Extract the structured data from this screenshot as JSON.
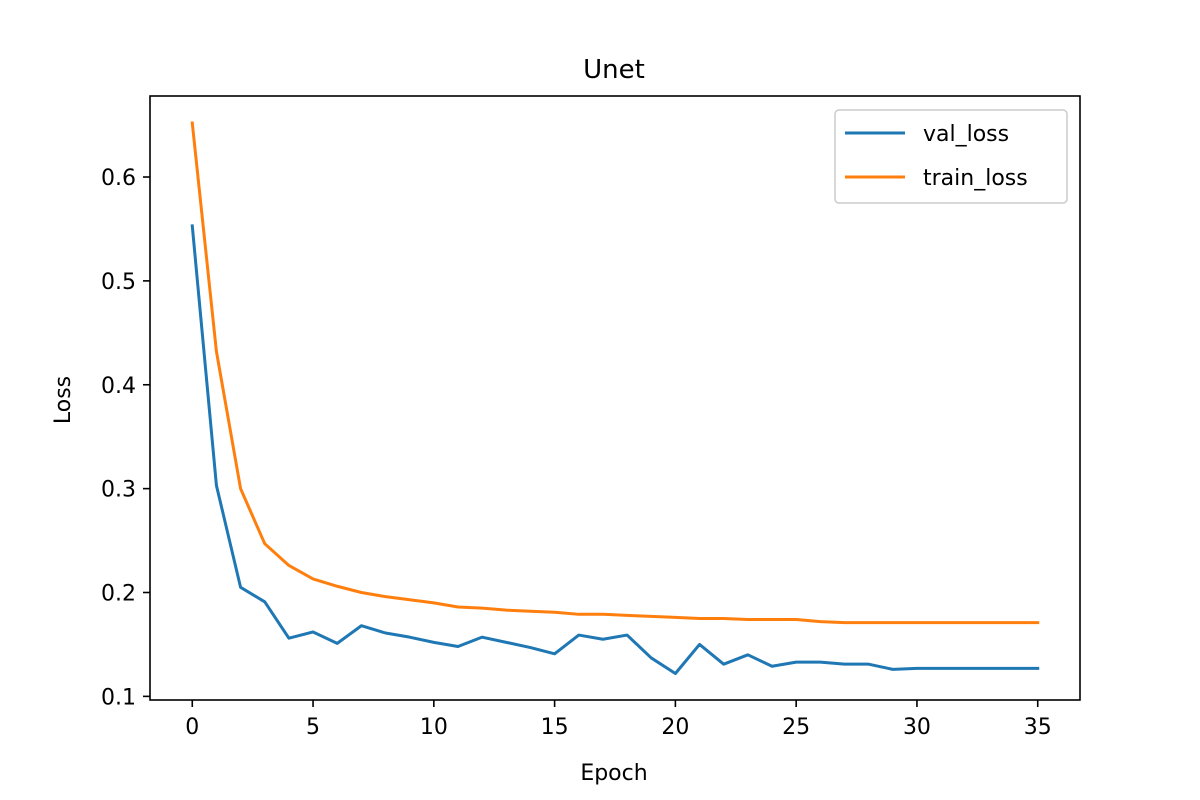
{
  "chart_data": {
    "type": "line",
    "title": "Unet",
    "xlabel": "Epoch",
    "ylabel": "Loss",
    "xlim": [
      -1.75,
      36.75
    ],
    "ylim": [
      0.0965,
      0.678
    ],
    "xticks": [
      0,
      5,
      10,
      15,
      20,
      25,
      30,
      35
    ],
    "yticks": [
      0.1,
      0.2,
      0.3,
      0.4,
      0.5,
      0.6
    ],
    "ytick_labels": [
      "0.1",
      "0.2",
      "0.3",
      "0.4",
      "0.5",
      "0.6"
    ],
    "xtick_labels": [
      "0",
      "5",
      "10",
      "15",
      "20",
      "25",
      "30",
      "35"
    ],
    "legend_position": "top-right",
    "grid": false,
    "x": [
      0,
      1,
      2,
      3,
      4,
      5,
      6,
      7,
      8,
      9,
      10,
      11,
      12,
      13,
      14,
      15,
      16,
      17,
      18,
      19,
      20,
      21,
      22,
      23,
      24,
      25,
      26,
      27,
      28,
      29,
      30,
      31,
      32,
      33,
      34,
      35
    ],
    "series": [
      {
        "name": "val_loss",
        "color": "#1f77b4",
        "values": [
          0.553,
          0.303,
          0.205,
          0.191,
          0.156,
          0.162,
          0.151,
          0.168,
          0.161,
          0.157,
          0.152,
          0.148,
          0.157,
          0.152,
          0.147,
          0.141,
          0.159,
          0.155,
          0.159,
          0.137,
          0.122,
          0.15,
          0.131,
          0.14,
          0.129,
          0.133,
          0.133,
          0.131,
          0.131,
          0.126,
          0.127,
          0.127,
          0.127,
          0.127,
          0.127,
          0.127
        ]
      },
      {
        "name": "train_loss",
        "color": "#ff7f0e",
        "values": [
          0.652,
          0.432,
          0.3,
          0.247,
          0.226,
          0.213,
          0.206,
          0.2,
          0.196,
          0.193,
          0.19,
          0.186,
          0.185,
          0.183,
          0.182,
          0.181,
          0.179,
          0.179,
          0.178,
          0.177,
          0.176,
          0.175,
          0.175,
          0.174,
          0.174,
          0.174,
          0.172,
          0.171,
          0.171,
          0.171,
          0.171,
          0.171,
          0.171,
          0.171,
          0.171,
          0.171
        ]
      }
    ]
  }
}
